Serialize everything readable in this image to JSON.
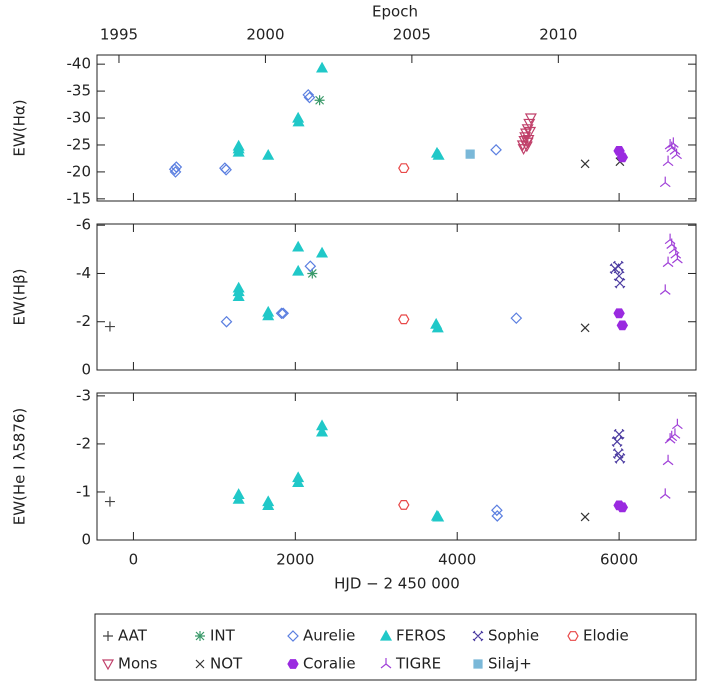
{
  "chart_data": {
    "type": "scatter",
    "x2label": "Epoch",
    "x2lim": [
      1994.25,
      2014.7
    ],
    "x2ticks": [
      1995,
      2000,
      2005,
      2010
    ],
    "xlabel": "HJD − 2 450 000",
    "xlim": [
      -450,
      6950
    ],
    "xticks": [
      0,
      2000,
      4000,
      6000
    ],
    "panels": [
      {
        "ylabel": "EW(Hα)",
        "ylim": [
          -14.6,
          -41.7
        ],
        "yticks": [
          -40,
          -35,
          -30,
          -25,
          -20,
          -15
        ]
      },
      {
        "ylabel": "EW(Hβ)",
        "ylim": [
          0,
          -6.05
        ],
        "yticks": [
          -6,
          -4,
          -2,
          0
        ]
      },
      {
        "ylabel": "EW(He I λ5876)",
        "ylim": [
          0,
          -3.06
        ],
        "yticks": [
          -3,
          -2,
          -1,
          0
        ]
      }
    ],
    "series": [
      {
        "name": "AAT",
        "color": "#444444",
        "marker": "plus",
        "x": [
          [],
          [
            -290
          ],
          [
            -290
          ]
        ],
        "y": [
          [],
          [
            -1.8
          ],
          [
            -0.8
          ]
        ]
      },
      {
        "name": "INT",
        "color": "#3a9a6a",
        "marker": "asterisk",
        "x": [
          [
            2300
          ],
          [
            2210
          ],
          []
        ],
        "y": [
          [
            -33.3
          ],
          [
            -4.0
          ],
          []
        ]
      },
      {
        "name": "Aurelie",
        "color": "#5b7fe0",
        "marker": "diamond",
        "x": [
          [
            510,
            520,
            530,
            1130,
            1145,
            2160,
            2175,
            4480
          ],
          [
            1150,
            1830,
            1850,
            2185,
            4730
          ],
          [
            4490,
            4495
          ]
        ],
        "y": [
          [
            -20.5,
            -20,
            -20.9,
            -20.7,
            -20.4,
            -34.3,
            -33.8,
            -24.1
          ],
          [
            -2.0,
            -2.35,
            -2.35,
            -4.3,
            -2.15
          ],
          [
            -0.62,
            -0.5
          ]
        ]
      },
      {
        "name": "FEROS",
        "color": "#20c8c8",
        "marker": "triangle",
        "x": [
          [
            1300,
            1300,
            1300,
            1665,
            2035,
            2040,
            2330,
            3750,
            3770
          ],
          [
            1300,
            1300,
            1300,
            1665,
            1665,
            2035,
            2035,
            2330,
            3740,
            3760
          ],
          [
            1300,
            1300,
            1665,
            1665,
            2035,
            2035,
            2330,
            2330,
            3750,
            3765
          ]
        ],
        "y": [
          [
            -24.8,
            -24.3,
            -23.7,
            -23.1,
            -30.0,
            -29.3,
            -39.3,
            -23.5,
            -23.1
          ],
          [
            -3.4,
            -3.25,
            -3.05,
            -2.4,
            -2.25,
            -5.1,
            -4.1,
            -4.85,
            -1.9,
            -1.75
          ],
          [
            -0.95,
            -0.85,
            -0.8,
            -0.72,
            -1.3,
            -1.2,
            -2.38,
            -2.25,
            -0.5,
            -0.48
          ]
        ]
      },
      {
        "name": "Sophie",
        "color": "#4a3aa0",
        "marker": "cross-star",
        "x": [
          [],
          [
            5950,
            5990,
            6000,
            6010
          ],
          [
            5975,
            6000,
            5990,
            6010
          ]
        ],
        "y": [
          [],
          [
            -4.2,
            -4.3,
            -3.9,
            -3.6
          ],
          [
            -2.05,
            -2.2,
            -1.8,
            -1.7
          ]
        ]
      },
      {
        "name": "Elodie",
        "color": "#e84848",
        "marker": "circle",
        "x": [
          [
            3340
          ],
          [
            3340
          ],
          [
            3340
          ]
        ],
        "y": [
          [
            -20.7
          ],
          [
            -2.1
          ],
          [
            -0.73
          ]
        ]
      },
      {
        "name": "Mons",
        "color": "#c0406a",
        "marker": "triangle-down",
        "x": [
          [
            4810,
            4820,
            4830,
            4840,
            4850,
            4860,
            4870,
            4880,
            4890,
            4900,
            4910,
            4870
          ],
          [],
          []
        ],
        "y": [
          [
            -25,
            -24.3,
            -25.8,
            -26.5,
            -27.2,
            -24.8,
            -28,
            -26,
            -29,
            -27.5,
            -30,
            -25.5
          ],
          [],
          []
        ]
      },
      {
        "name": "NOT",
        "color": "#333333",
        "marker": "x",
        "x": [
          [
            5580,
            6010
          ],
          [
            5580
          ],
          [
            5580
          ]
        ],
        "y": [
          [
            -21.5,
            -21.9
          ],
          [
            -1.75
          ],
          [
            -0.48
          ]
        ]
      },
      {
        "name": "Coralie",
        "color": "#9a2ae0",
        "marker": "filled-circle",
        "x": [
          [
            6000,
            6040
          ],
          [
            6000,
            6040
          ],
          [
            6000,
            6040
          ]
        ],
        "y": [
          [
            -23.9,
            -22.7
          ],
          [
            -2.35,
            -1.85
          ],
          [
            -0.72,
            -0.68
          ]
        ]
      },
      {
        "name": "TIGRE",
        "color": "#a040d8",
        "marker": "tri",
        "x": [
          [
            6570,
            6605,
            6630,
            6650,
            6670,
            6690,
            6710
          ],
          [
            6570,
            6605,
            6630,
            6650,
            6680,
            6700,
            6720
          ],
          [
            6570,
            6605,
            6630,
            6650,
            6690,
            6720
          ]
        ],
        "y": [
          [
            -18,
            -21.9,
            -25,
            -24.5,
            -25.3,
            -24,
            -23.2
          ],
          [
            -3.3,
            -4.45,
            -5.4,
            -5.2,
            -5.0,
            -4.8,
            -4.6
          ],
          [
            -0.95,
            -1.65,
            -2.1,
            -2.15,
            -2.2,
            -2.4
          ]
        ]
      },
      {
        "name": "Silaj+",
        "color": "#7ab8d8",
        "marker": "square",
        "x": [
          [
            4160
          ],
          [],
          []
        ],
        "y": [
          [
            -23.3
          ],
          [],
          []
        ]
      }
    ]
  }
}
